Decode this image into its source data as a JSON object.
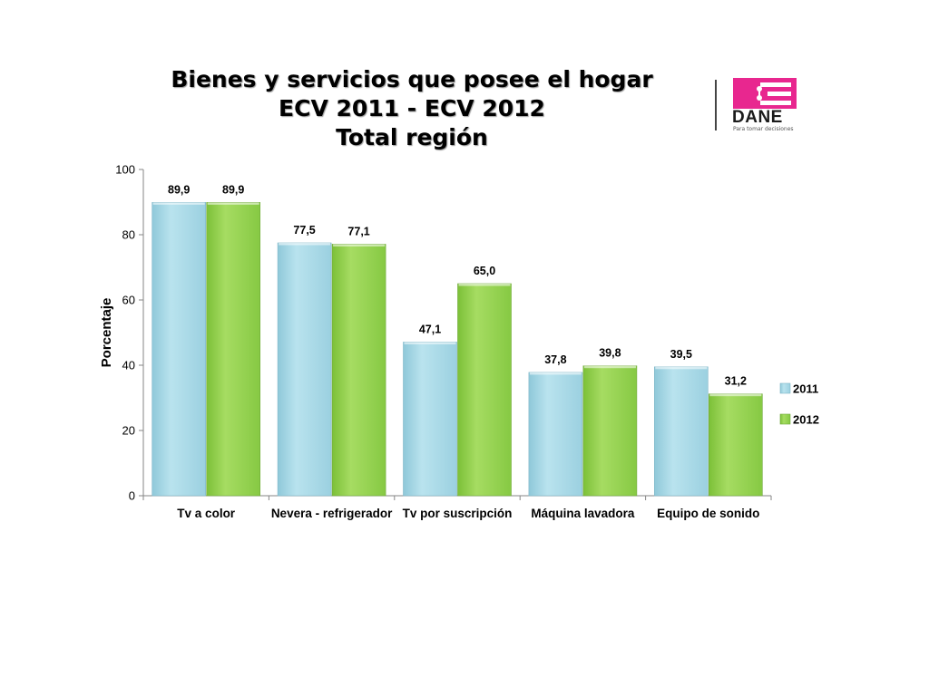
{
  "title": {
    "line1": "Bienes y servicios que posee el hogar",
    "line2": "ECV 2011 - ECV 2012",
    "line3": "Total región"
  },
  "logo": {
    "name": "DANE",
    "tagline": "Para tomar decisiones",
    "color": "#e8278f"
  },
  "chart_data": {
    "type": "bar",
    "categories": [
      "Tv a color",
      "Nevera - refrigerador",
      "Tv por suscripción",
      "Máquina lavadora",
      "Equipo de sonido"
    ],
    "series": [
      {
        "name": "2011",
        "values": [
          89.9,
          77.5,
          47.1,
          37.8,
          39.5
        ],
        "labels": [
          "89,9",
          "77,5",
          "47,1",
          "37,8",
          "39,5"
        ],
        "color": "#a8d8e6"
      },
      {
        "name": "2012",
        "values": [
          89.9,
          77.1,
          65.0,
          39.8,
          31.2
        ],
        "labels": [
          "89,9",
          "77,1",
          "65,0",
          "39,8",
          "31,2"
        ],
        "color": "#92d050"
      }
    ],
    "xlabel": "",
    "ylabel": "Porcentaje",
    "ylim": [
      0,
      100
    ],
    "yticks": [
      0,
      20,
      40,
      60,
      80,
      100
    ],
    "grid": false,
    "legend": "right"
  }
}
